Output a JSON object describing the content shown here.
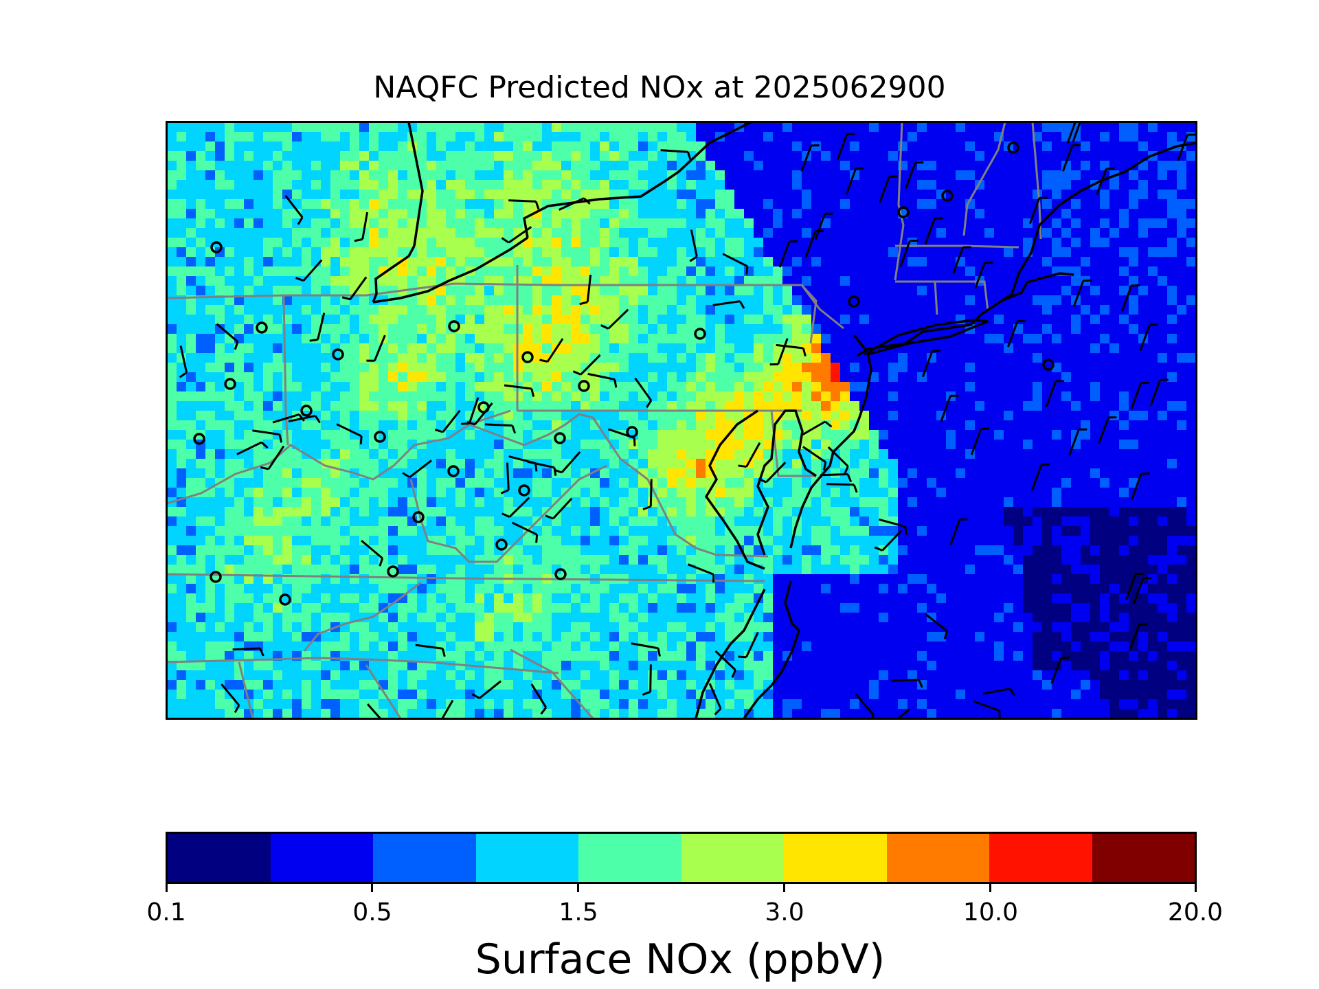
{
  "title": "NAQFC Predicted NOx at 2025062900",
  "colorbar": {
    "label": "Surface NOx (ppbV)",
    "colors": [
      "#000080",
      "#0000f1",
      "#0060ff",
      "#00d4ff",
      "#4dffa8",
      "#a8ff4d",
      "#ffe500",
      "#ff7b00",
      "#ff1300",
      "#800000"
    ],
    "tick_labels": [
      "0.1",
      "0.5",
      "1.5",
      "3.0",
      "10.0",
      "20.0"
    ]
  },
  "map": {
    "region": "Northeastern United States",
    "field": "surface-nox-concentration",
    "overlays": [
      "state-borders",
      "coastlines",
      "wind-barbs",
      "monitor-sites"
    ],
    "state_border_color": "#808080",
    "coastline_color": "#000000",
    "monitor_site_count": 27
  }
}
